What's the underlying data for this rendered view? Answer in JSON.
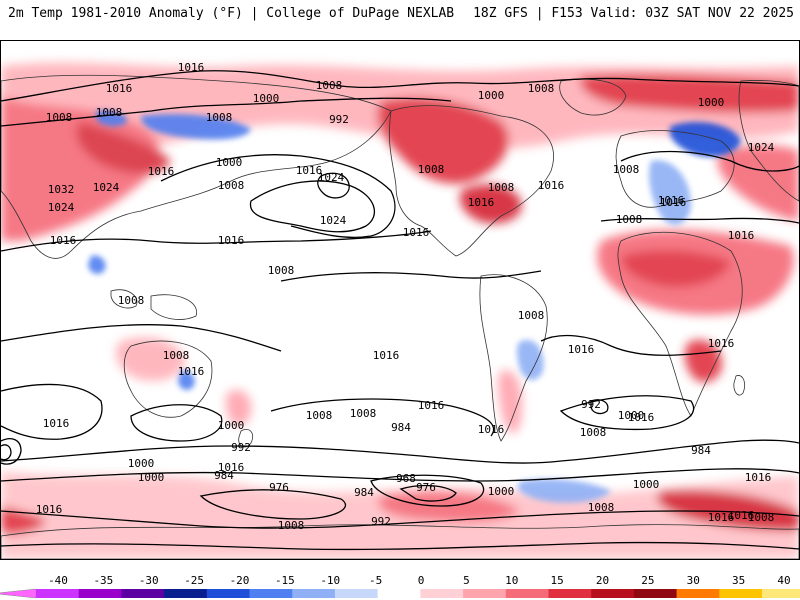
{
  "header": {
    "title": "2m Temp 1981-2010 Anomaly (°F) | College of DuPage NEXLAB",
    "run_info": "18Z GFS | F153 Valid: 03Z SAT NOV 22 2025"
  },
  "map": {
    "contour_labels": [
      {
        "text": "1016"
      },
      {
        "text": "1016"
      },
      {
        "text": "1008"
      },
      {
        "text": "1008"
      },
      {
        "text": "1000"
      },
      {
        "text": "1008"
      },
      {
        "text": "1000"
      },
      {
        "text": "992"
      },
      {
        "text": "1008"
      },
      {
        "text": "1000"
      },
      {
        "text": "1008"
      },
      {
        "text": "1032"
      },
      {
        "text": "1024"
      },
      {
        "text": "1016"
      },
      {
        "text": "1024"
      },
      {
        "text": "1016"
      },
      {
        "text": "1016"
      },
      {
        "text": "1024"
      },
      {
        "text": "1024"
      },
      {
        "text": "1016"
      },
      {
        "text": "1000"
      },
      {
        "text": "1008"
      },
      {
        "text": "1008"
      },
      {
        "text": "1008"
      },
      {
        "text": "1016"
      },
      {
        "text": "1016"
      },
      {
        "text": "1016"
      },
      {
        "text": "1008"
      },
      {
        "text": "1008"
      },
      {
        "text": "1016"
      },
      {
        "text": "1024"
      },
      {
        "text": "1016"
      },
      {
        "text": "1016"
      },
      {
        "text": "1008"
      },
      {
        "text": "1008"
      },
      {
        "text": "1008"
      },
      {
        "text": "1008"
      },
      {
        "text": "1016"
      },
      {
        "text": "1016"
      },
      {
        "text": "1016"
      },
      {
        "text": "1016"
      },
      {
        "text": "1016"
      },
      {
        "text": "1000"
      },
      {
        "text": "1008"
      },
      {
        "text": "1008"
      },
      {
        "text": "1016"
      },
      {
        "text": "1000"
      },
      {
        "text": "984"
      },
      {
        "text": "1016"
      },
      {
        "text": "1016"
      },
      {
        "text": "1016"
      },
      {
        "text": "1008"
      },
      {
        "text": "992"
      },
      {
        "text": "992"
      },
      {
        "text": "984"
      },
      {
        "text": "1000"
      },
      {
        "text": "1000"
      },
      {
        "text": "984"
      },
      {
        "text": "976"
      },
      {
        "text": "968"
      },
      {
        "text": "976"
      },
      {
        "text": "984"
      },
      {
        "text": "1000"
      },
      {
        "text": "1008"
      },
      {
        "text": "1016"
      },
      {
        "text": "1016"
      },
      {
        "text": "1000"
      },
      {
        "text": "992"
      },
      {
        "text": "1008"
      },
      {
        "text": "1016"
      },
      {
        "text": "1008"
      },
      {
        "text": "1016"
      }
    ]
  },
  "colorbar": {
    "ticks": [
      "-40",
      "-35",
      "-30",
      "-25",
      "-20",
      "-15",
      "-10",
      "-5",
      "0",
      "5",
      "10",
      "15",
      "20",
      "25",
      "30",
      "35",
      "40"
    ],
    "colors": [
      "#ff66ff",
      "#cc33ff",
      "#9900cc",
      "#5c00a3",
      "#0a1f8f",
      "#1f4fd8",
      "#4f7ff0",
      "#8fb0f5",
      "#c7d8fb",
      "#ffffff",
      "#ffd0d5",
      "#ffa3ad",
      "#f56b78",
      "#e0303f",
      "#b80f1f",
      "#8f0812",
      "#ff7a00",
      "#ffc400",
      "#ffe87a",
      "#c8c8c8"
    ]
  }
}
